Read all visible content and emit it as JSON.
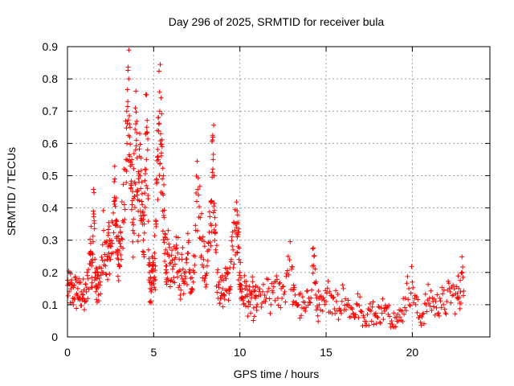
{
  "chart_data": {
    "type": "scatter",
    "title": "Day 296 of 2025, SRMTID for receiver bula",
    "xlabel": "GPS time / hours",
    "ylabel": "SRMTID / TECUs",
    "xlim": [
      0,
      24.5
    ],
    "ylim": [
      0,
      0.9
    ],
    "xticks": [
      "0",
      "5",
      "10",
      "15",
      "20"
    ],
    "xtick_values": [
      0,
      5,
      10,
      15,
      20
    ],
    "yticks": [
      "0",
      "0.1",
      "0.2",
      "0.3",
      "0.4",
      "0.5",
      "0.6",
      "0.7",
      "0.8",
      "0.9"
    ],
    "ytick_values": [
      0,
      0.1,
      0.2,
      0.3,
      0.4,
      0.5,
      0.6,
      0.7,
      0.8,
      0.9
    ],
    "grid": true,
    "marker": "+",
    "color": "#ff0000",
    "series": [
      {
        "name": "SRMTID",
        "x": [
          0.0,
          0.1,
          0.2,
          0.3,
          0.4,
          0.5,
          0.6,
          0.7,
          0.8,
          0.9,
          1.0,
          1.1,
          1.2,
          1.3,
          1.35,
          1.4,
          1.45,
          1.5,
          1.55,
          1.6,
          1.65,
          1.7,
          1.75,
          1.8,
          1.9,
          2.0,
          2.1,
          2.2,
          2.3,
          2.35,
          2.4,
          2.45,
          2.5,
          2.6,
          2.7,
          2.75,
          2.8,
          2.85,
          2.9,
          2.95,
          3.0,
          3.05,
          3.1,
          3.2,
          3.3,
          3.4,
          3.45,
          3.5,
          3.55,
          3.6,
          3.65,
          3.7,
          3.75,
          3.8,
          3.85,
          3.9,
          3.95,
          4.0,
          4.05,
          4.1,
          4.15,
          4.2,
          4.25,
          4.3,
          4.35,
          4.4,
          4.45,
          4.5,
          4.55,
          4.6,
          4.65,
          4.7,
          4.75,
          4.8,
          4.85,
          4.9,
          4.95,
          5.0,
          5.05,
          5.1,
          5.15,
          5.2,
          5.25,
          5.3,
          5.35,
          5.4,
          5.45,
          5.5,
          5.55,
          5.6,
          5.65,
          5.7,
          5.75,
          5.8,
          5.9,
          6.0,
          6.1,
          6.2,
          6.3,
          6.4,
          6.5,
          6.6,
          6.7,
          6.8,
          6.9,
          7.0,
          7.1,
          7.2,
          7.3,
          7.4,
          7.5,
          7.6,
          7.7,
          7.8,
          7.9,
          8.0,
          8.1,
          8.2,
          8.3,
          8.35,
          8.4,
          8.45,
          8.5,
          8.55,
          8.6,
          8.7,
          8.8,
          8.9,
          9.0,
          9.1,
          9.2,
          9.3,
          9.4,
          9.5,
          9.6,
          9.7,
          9.8,
          9.85,
          9.9,
          9.95,
          10.0,
          10.05,
          10.1,
          10.2,
          10.3,
          10.4,
          10.5,
          10.6,
          10.7,
          10.8,
          10.9,
          11.0,
          11.2,
          11.4,
          11.6,
          11.8,
          12.0,
          12.2,
          12.4,
          12.6,
          12.8,
          13.0,
          13.1,
          13.2,
          13.4,
          13.6,
          13.8,
          14.0,
          14.2,
          14.3,
          14.4,
          14.5,
          14.6,
          14.8,
          15.0,
          15.2,
          15.4,
          15.6,
          15.8,
          16.0,
          16.2,
          16.4,
          16.6,
          16.8,
          17.0,
          17.2,
          17.4,
          17.6,
          17.8,
          18.0,
          18.2,
          18.4,
          18.6,
          18.8,
          19.0,
          19.2,
          19.4,
          19.6,
          19.8,
          20.0,
          20.2,
          20.4,
          20.6,
          20.8,
          21.0,
          21.2,
          21.4,
          21.6,
          21.8,
          22.0,
          22.2,
          22.4,
          22.6,
          22.7,
          22.8,
          22.9
        ],
        "y": [
          0.16,
          0.14,
          0.15,
          0.12,
          0.16,
          0.13,
          0.15,
          0.12,
          0.14,
          0.13,
          0.11,
          0.14,
          0.18,
          0.26,
          0.29,
          0.22,
          0.24,
          0.39,
          0.36,
          0.2,
          0.16,
          0.15,
          0.19,
          0.13,
          0.17,
          0.2,
          0.33,
          0.22,
          0.25,
          0.28,
          0.26,
          0.3,
          0.24,
          0.29,
          0.42,
          0.49,
          0.36,
          0.31,
          0.27,
          0.24,
          0.3,
          0.29,
          0.28,
          0.36,
          0.41,
          0.55,
          0.6,
          0.73,
          0.8,
          0.66,
          0.53,
          0.47,
          0.41,
          0.33,
          0.43,
          0.48,
          0.58,
          0.61,
          0.44,
          0.39,
          0.48,
          0.5,
          0.46,
          0.42,
          0.35,
          0.3,
          0.35,
          0.52,
          0.63,
          0.65,
          0.58,
          0.27,
          0.2,
          0.15,
          0.14,
          0.17,
          0.23,
          0.18,
          0.26,
          0.22,
          0.35,
          0.48,
          0.56,
          0.66,
          0.7,
          0.63,
          0.57,
          0.49,
          0.44,
          0.37,
          0.31,
          0.27,
          0.22,
          0.26,
          0.25,
          0.23,
          0.21,
          0.24,
          0.31,
          0.26,
          0.16,
          0.19,
          0.21,
          0.17,
          0.23,
          0.26,
          0.2,
          0.14,
          0.17,
          0.25,
          0.42,
          0.44,
          0.37,
          0.3,
          0.24,
          0.19,
          0.22,
          0.27,
          0.35,
          0.42,
          0.51,
          0.55,
          0.5,
          0.37,
          0.27,
          0.2,
          0.17,
          0.12,
          0.15,
          0.13,
          0.18,
          0.2,
          0.15,
          0.24,
          0.27,
          0.33,
          0.34,
          0.31,
          0.28,
          0.24,
          0.2,
          0.16,
          0.14,
          0.12,
          0.15,
          0.13,
          0.11,
          0.1,
          0.14,
          0.09,
          0.12,
          0.1,
          0.13,
          0.11,
          0.14,
          0.1,
          0.17,
          0.12,
          0.15,
          0.14,
          0.25,
          0.21,
          0.11,
          0.13,
          0.1,
          0.09,
          0.08,
          0.12,
          0.22,
          0.25,
          0.13,
          0.09,
          0.1,
          0.08,
          0.11,
          0.14,
          0.12,
          0.11,
          0.08,
          0.15,
          0.1,
          0.09,
          0.07,
          0.1,
          0.08,
          0.06,
          0.07,
          0.08,
          0.07,
          0.06,
          0.09,
          0.08,
          0.07,
          0.05,
          0.06,
          0.05,
          0.08,
          0.12,
          0.15,
          0.17,
          0.1,
          0.06,
          0.07,
          0.1,
          0.12,
          0.11,
          0.09,
          0.12,
          0.1,
          0.11,
          0.14,
          0.13,
          0.12,
          0.15,
          0.14,
          0.2
        ]
      }
    ]
  }
}
